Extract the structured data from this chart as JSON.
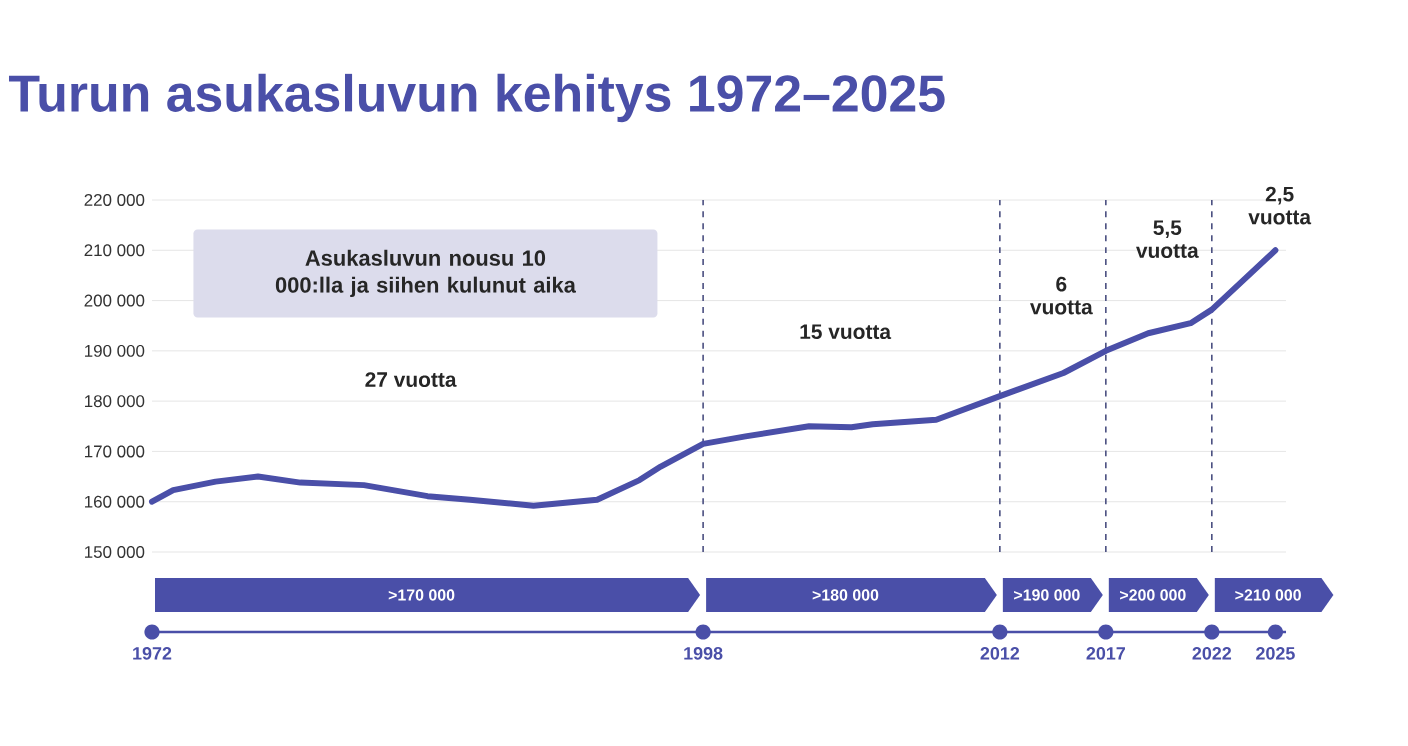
{
  "chart_data": {
    "type": "line",
    "title": "Turun asukasluvun kehitys 1972–2025",
    "x": [
      1972,
      1973,
      1975,
      1977,
      1979,
      1982,
      1985,
      1987,
      1990,
      1993,
      1995,
      1996,
      1998,
      2000,
      2003,
      2005,
      2006,
      2009,
      2012,
      2015,
      2017,
      2019,
      2021,
      2022,
      2025
    ],
    "values": [
      160000,
      162300,
      164000,
      165000,
      163800,
      163300,
      161100,
      160400,
      159200,
      160400,
      164300,
      167000,
      171500,
      173000,
      175000,
      174800,
      175400,
      176300,
      181000,
      185600,
      190000,
      193500,
      195500,
      198200,
      210000
    ],
    "color": "#4a4fa8",
    "xlim": [
      1972,
      2025.5
    ],
    "xticks": [
      1972,
      1998,
      2012,
      2017,
      2022,
      2025
    ],
    "ylim": [
      150000,
      220000
    ],
    "yticks": [
      {
        "value": 150000,
        "label": "150 000"
      },
      {
        "value": 160000,
        "label": "160 000"
      },
      {
        "value": 170000,
        "label": "170 000"
      },
      {
        "value": 180000,
        "label": "180 000"
      },
      {
        "value": 190000,
        "label": "190 000"
      },
      {
        "value": 200000,
        "label": "200 000"
      },
      {
        "value": 210000,
        "label": "210 000"
      },
      {
        "value": 220000,
        "label": "220 000"
      }
    ],
    "grid": "y",
    "ref_lines": [
      {
        "axis": "x",
        "value": 1998,
        "color": "#4a4f80",
        "line_style": "dashed"
      },
      {
        "axis": "x",
        "value": 2012,
        "color": "#4a4f80",
        "line_style": "dashed"
      },
      {
        "axis": "x",
        "value": 2017,
        "color": "#4a4f80",
        "line_style": "dashed"
      },
      {
        "axis": "x",
        "value": 2022,
        "color": "#4a4f80",
        "line_style": "dashed"
      }
    ],
    "annotations": [
      "Asukasluvun nousu 10 000:lla ja siihen kulunut aika",
      "27 vuotta",
      "15 vuotta",
      "6 vuotta",
      "5,5 vuotta",
      "2,5 vuotta",
      ">170 000",
      ">180 000",
      ">190 000",
      ">200 000",
      ">210 000"
    ]
  }
}
